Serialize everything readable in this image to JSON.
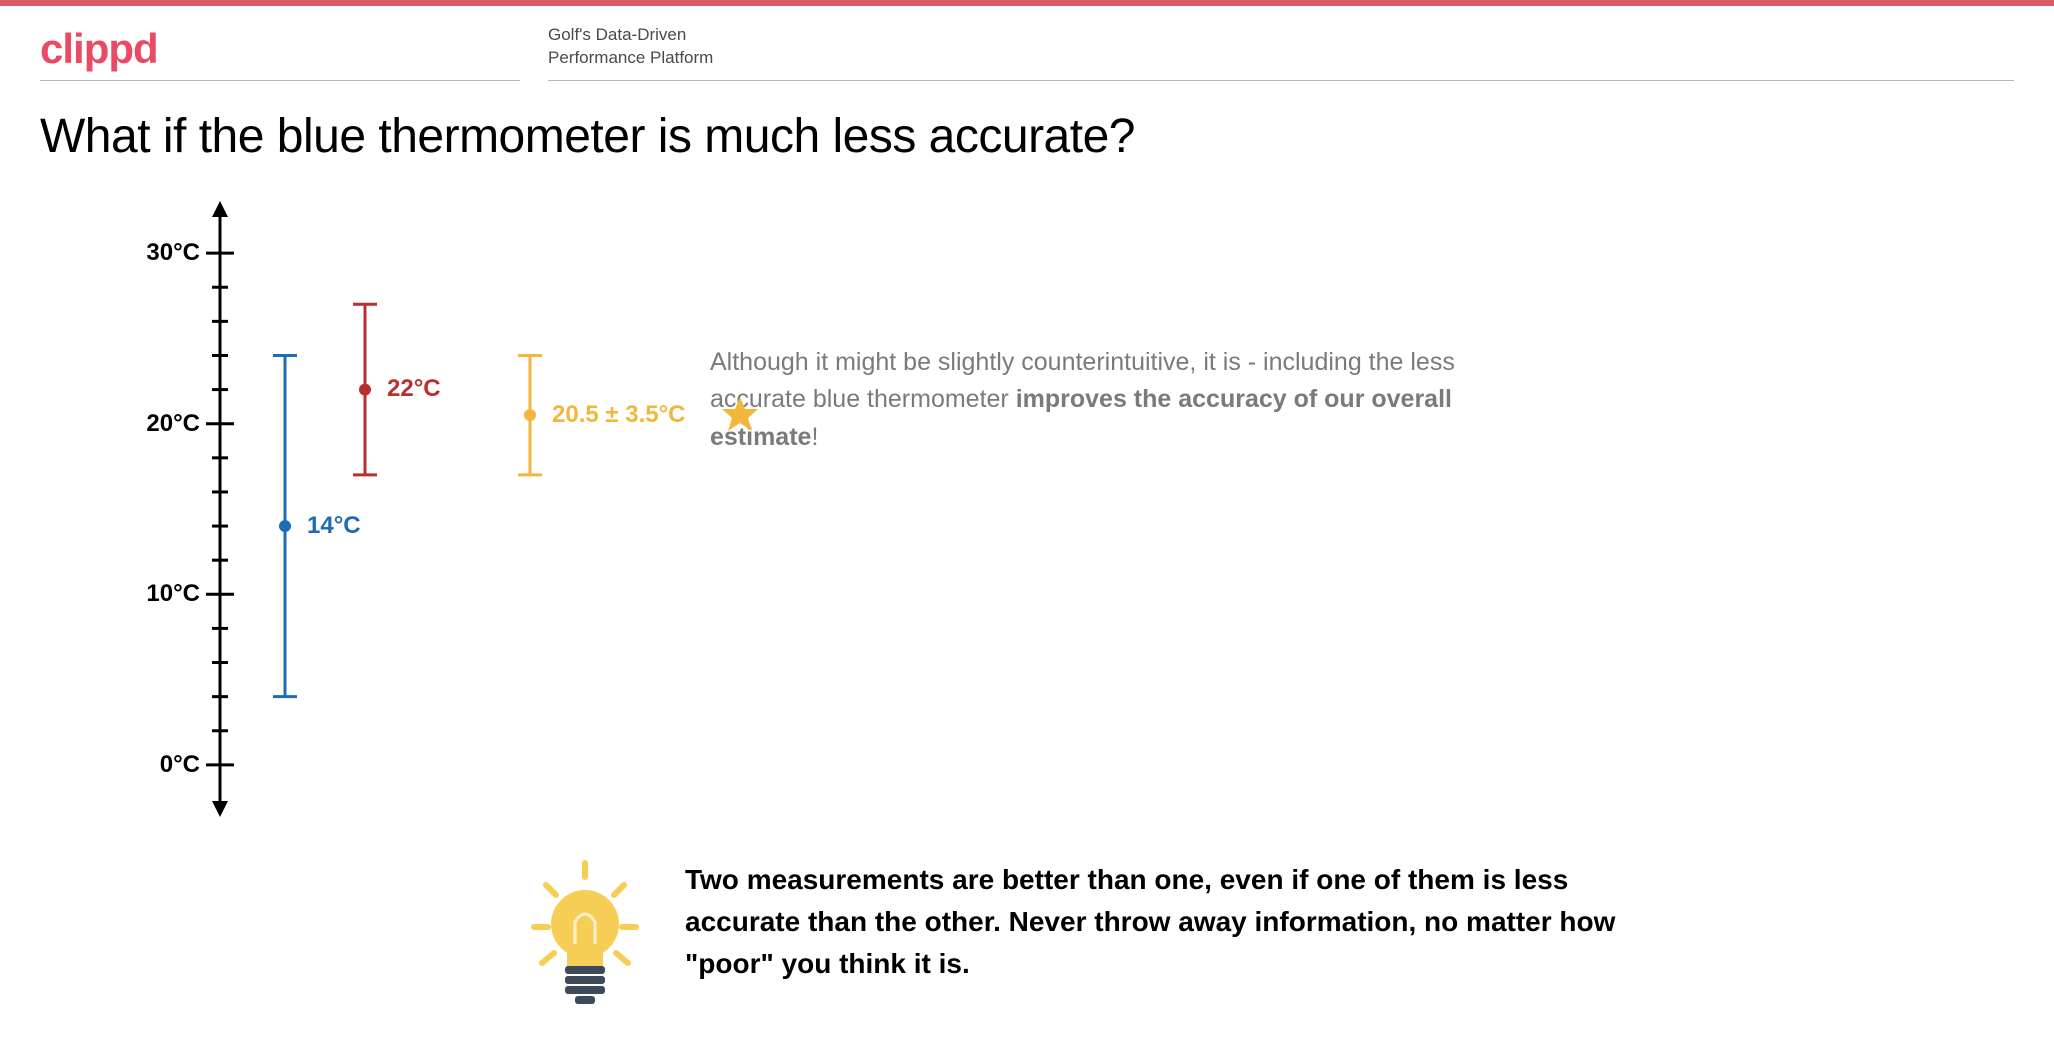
{
  "brand": {
    "logo": "clippd",
    "logo_color": "#e94a66",
    "tagline_line1": "Golf's Data-Driven",
    "tagline_line2": "Performance Platform",
    "topbar_color": "#d95a6a"
  },
  "title": "What if the blue thermometer is much less accurate?",
  "chart": {
    "type": "errorbar",
    "axis": {
      "min_c": -2,
      "max_c": 32,
      "tick_labels": [
        "0°C",
        "10°C",
        "20°C",
        "30°C"
      ],
      "tick_values": [
        0,
        10,
        20,
        30
      ],
      "minor_step": 2,
      "axis_color": "#000000",
      "label_fontsize": 24,
      "label_fontweight": "bold"
    },
    "series": [
      {
        "name": "blue",
        "center": 14,
        "half_range": 10,
        "color": "#1e6bb8",
        "label": "14°C",
        "x_offset": 65
      },
      {
        "name": "red",
        "center": 22,
        "half_range": 5,
        "color": "#b92e2e",
        "label": "22°C",
        "x_offset": 145
      },
      {
        "name": "combined",
        "center": 20.5,
        "half_range": 3.5,
        "color": "#f2b63c",
        "label": "20.5 ± 3.5°C",
        "x_offset": 310,
        "star": true
      }
    ],
    "cap_halfwidth": 12,
    "line_width": 3,
    "dot_radius": 6
  },
  "explanation": {
    "pre": "Although it might be slightly counterintuitive, it is - including the less accurate blue thermometer ",
    "bold": "improves the accuracy of our overall estimate",
    "post": "!"
  },
  "insight": "Two measurements are better than one, even if one of them is less accurate than the other. Never throw away information, no matter how \"poor\" you think it is.",
  "icons": {
    "star_color": "#f2b63c",
    "bulb_glass": "#f6ce56",
    "bulb_base": "#3d4a5c",
    "bulb_ray": "#f6ce56"
  }
}
